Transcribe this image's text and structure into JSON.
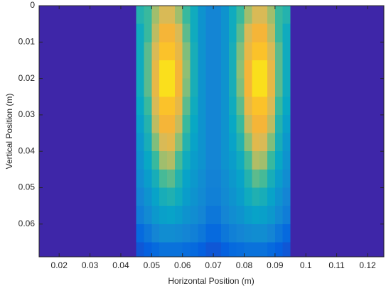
{
  "chart_data": {
    "type": "heatmap",
    "xlabel": "Horizontal Position (m)",
    "ylabel": "Vertical Position (m)",
    "xlim": [
      0.0135,
      0.1253
    ],
    "ylim": [
      0,
      0.069
    ],
    "y_direction": "reverse",
    "xticks": [
      0.02,
      0.03,
      0.04,
      0.05,
      0.06,
      0.07,
      0.08,
      0.09,
      0.1,
      0.11,
      0.12
    ],
    "yticks": [
      0,
      0.01,
      0.02,
      0.03,
      0.04,
      0.05,
      0.06
    ],
    "x_edges": [
      0.0135,
      0.045,
      0.0475,
      0.05,
      0.0525,
      0.055,
      0.0575,
      0.06,
      0.0625,
      0.065,
      0.0675,
      0.07,
      0.0725,
      0.075,
      0.0775,
      0.08,
      0.0825,
      0.085,
      0.0875,
      0.09,
      0.0925,
      0.095,
      0.1253
    ],
    "y_edges": [
      0,
      0.005,
      0.01,
      0.015,
      0.02,
      0.025,
      0.03,
      0.035,
      0.04,
      0.045,
      0.05,
      0.055,
      0.06,
      0.065,
      0.069
    ],
    "clim": [
      0,
      1
    ],
    "colormap": [
      "#3e26a8",
      "#0363e1",
      "#1485d4",
      "#06a7c6",
      "#38b99e",
      "#92bf73",
      "#d9ba56",
      "#fcb431",
      "#f9fb0e"
    ],
    "z": [
      [
        0,
        0.45,
        0.5,
        0.65,
        0.75,
        0.75,
        0.65,
        0.5,
        0.4,
        0.3,
        0.25,
        0.25,
        0.3,
        0.4,
        0.5,
        0.65,
        0.75,
        0.75,
        0.65,
        0.5,
        0.45,
        0
      ],
      [
        0,
        0.4,
        0.5,
        0.7,
        0.85,
        0.85,
        0.75,
        0.55,
        0.4,
        0.3,
        0.25,
        0.25,
        0.3,
        0.4,
        0.55,
        0.75,
        0.85,
        0.85,
        0.7,
        0.5,
        0.4,
        0
      ],
      [
        0,
        0.4,
        0.55,
        0.75,
        0.9,
        0.9,
        0.8,
        0.6,
        0.42,
        0.3,
        0.25,
        0.25,
        0.3,
        0.42,
        0.6,
        0.8,
        0.9,
        0.9,
        0.75,
        0.55,
        0.4,
        0
      ],
      [
        0,
        0.4,
        0.55,
        0.8,
        0.95,
        0.95,
        0.85,
        0.62,
        0.42,
        0.3,
        0.25,
        0.25,
        0.3,
        0.42,
        0.62,
        0.85,
        0.95,
        0.95,
        0.8,
        0.55,
        0.4,
        0
      ],
      [
        0,
        0.4,
        0.55,
        0.8,
        0.95,
        0.95,
        0.85,
        0.6,
        0.42,
        0.3,
        0.25,
        0.25,
        0.3,
        0.42,
        0.6,
        0.85,
        0.95,
        0.95,
        0.8,
        0.55,
        0.4,
        0
      ],
      [
        0,
        0.38,
        0.5,
        0.75,
        0.9,
        0.9,
        0.8,
        0.55,
        0.4,
        0.3,
        0.25,
        0.25,
        0.3,
        0.4,
        0.55,
        0.8,
        0.9,
        0.9,
        0.75,
        0.5,
        0.38,
        0
      ],
      [
        0,
        0.35,
        0.45,
        0.7,
        0.85,
        0.85,
        0.72,
        0.5,
        0.38,
        0.3,
        0.25,
        0.25,
        0.3,
        0.38,
        0.5,
        0.72,
        0.85,
        0.85,
        0.7,
        0.45,
        0.35,
        0
      ],
      [
        0,
        0.32,
        0.42,
        0.6,
        0.75,
        0.78,
        0.62,
        0.45,
        0.36,
        0.3,
        0.25,
        0.25,
        0.3,
        0.36,
        0.45,
        0.62,
        0.78,
        0.75,
        0.6,
        0.42,
        0.32,
        0
      ],
      [
        0,
        0.3,
        0.38,
        0.5,
        0.65,
        0.68,
        0.52,
        0.4,
        0.34,
        0.3,
        0.25,
        0.25,
        0.3,
        0.34,
        0.4,
        0.52,
        0.68,
        0.65,
        0.5,
        0.38,
        0.3,
        0
      ],
      [
        0,
        0.28,
        0.34,
        0.42,
        0.52,
        0.55,
        0.45,
        0.36,
        0.32,
        0.28,
        0.24,
        0.24,
        0.28,
        0.32,
        0.36,
        0.45,
        0.55,
        0.52,
        0.42,
        0.34,
        0.28,
        0
      ],
      [
        0,
        0.25,
        0.3,
        0.36,
        0.42,
        0.44,
        0.4,
        0.34,
        0.3,
        0.27,
        0.23,
        0.23,
        0.27,
        0.3,
        0.34,
        0.4,
        0.44,
        0.42,
        0.36,
        0.3,
        0.25,
        0
      ],
      [
        0,
        0.22,
        0.27,
        0.32,
        0.35,
        0.36,
        0.34,
        0.3,
        0.28,
        0.25,
        0.2,
        0.2,
        0.25,
        0.28,
        0.3,
        0.34,
        0.36,
        0.35,
        0.32,
        0.27,
        0.22,
        0
      ],
      [
        0,
        0.15,
        0.2,
        0.25,
        0.28,
        0.28,
        0.27,
        0.25,
        0.23,
        0.2,
        0.15,
        0.15,
        0.2,
        0.23,
        0.25,
        0.27,
        0.28,
        0.28,
        0.25,
        0.2,
        0.15,
        0
      ],
      [
        0,
        0.1,
        0.12,
        0.15,
        0.18,
        0.18,
        0.18,
        0.16,
        0.15,
        0.12,
        0.1,
        0.1,
        0.12,
        0.15,
        0.16,
        0.18,
        0.18,
        0.18,
        0.15,
        0.12,
        0.1,
        0
      ]
    ]
  }
}
